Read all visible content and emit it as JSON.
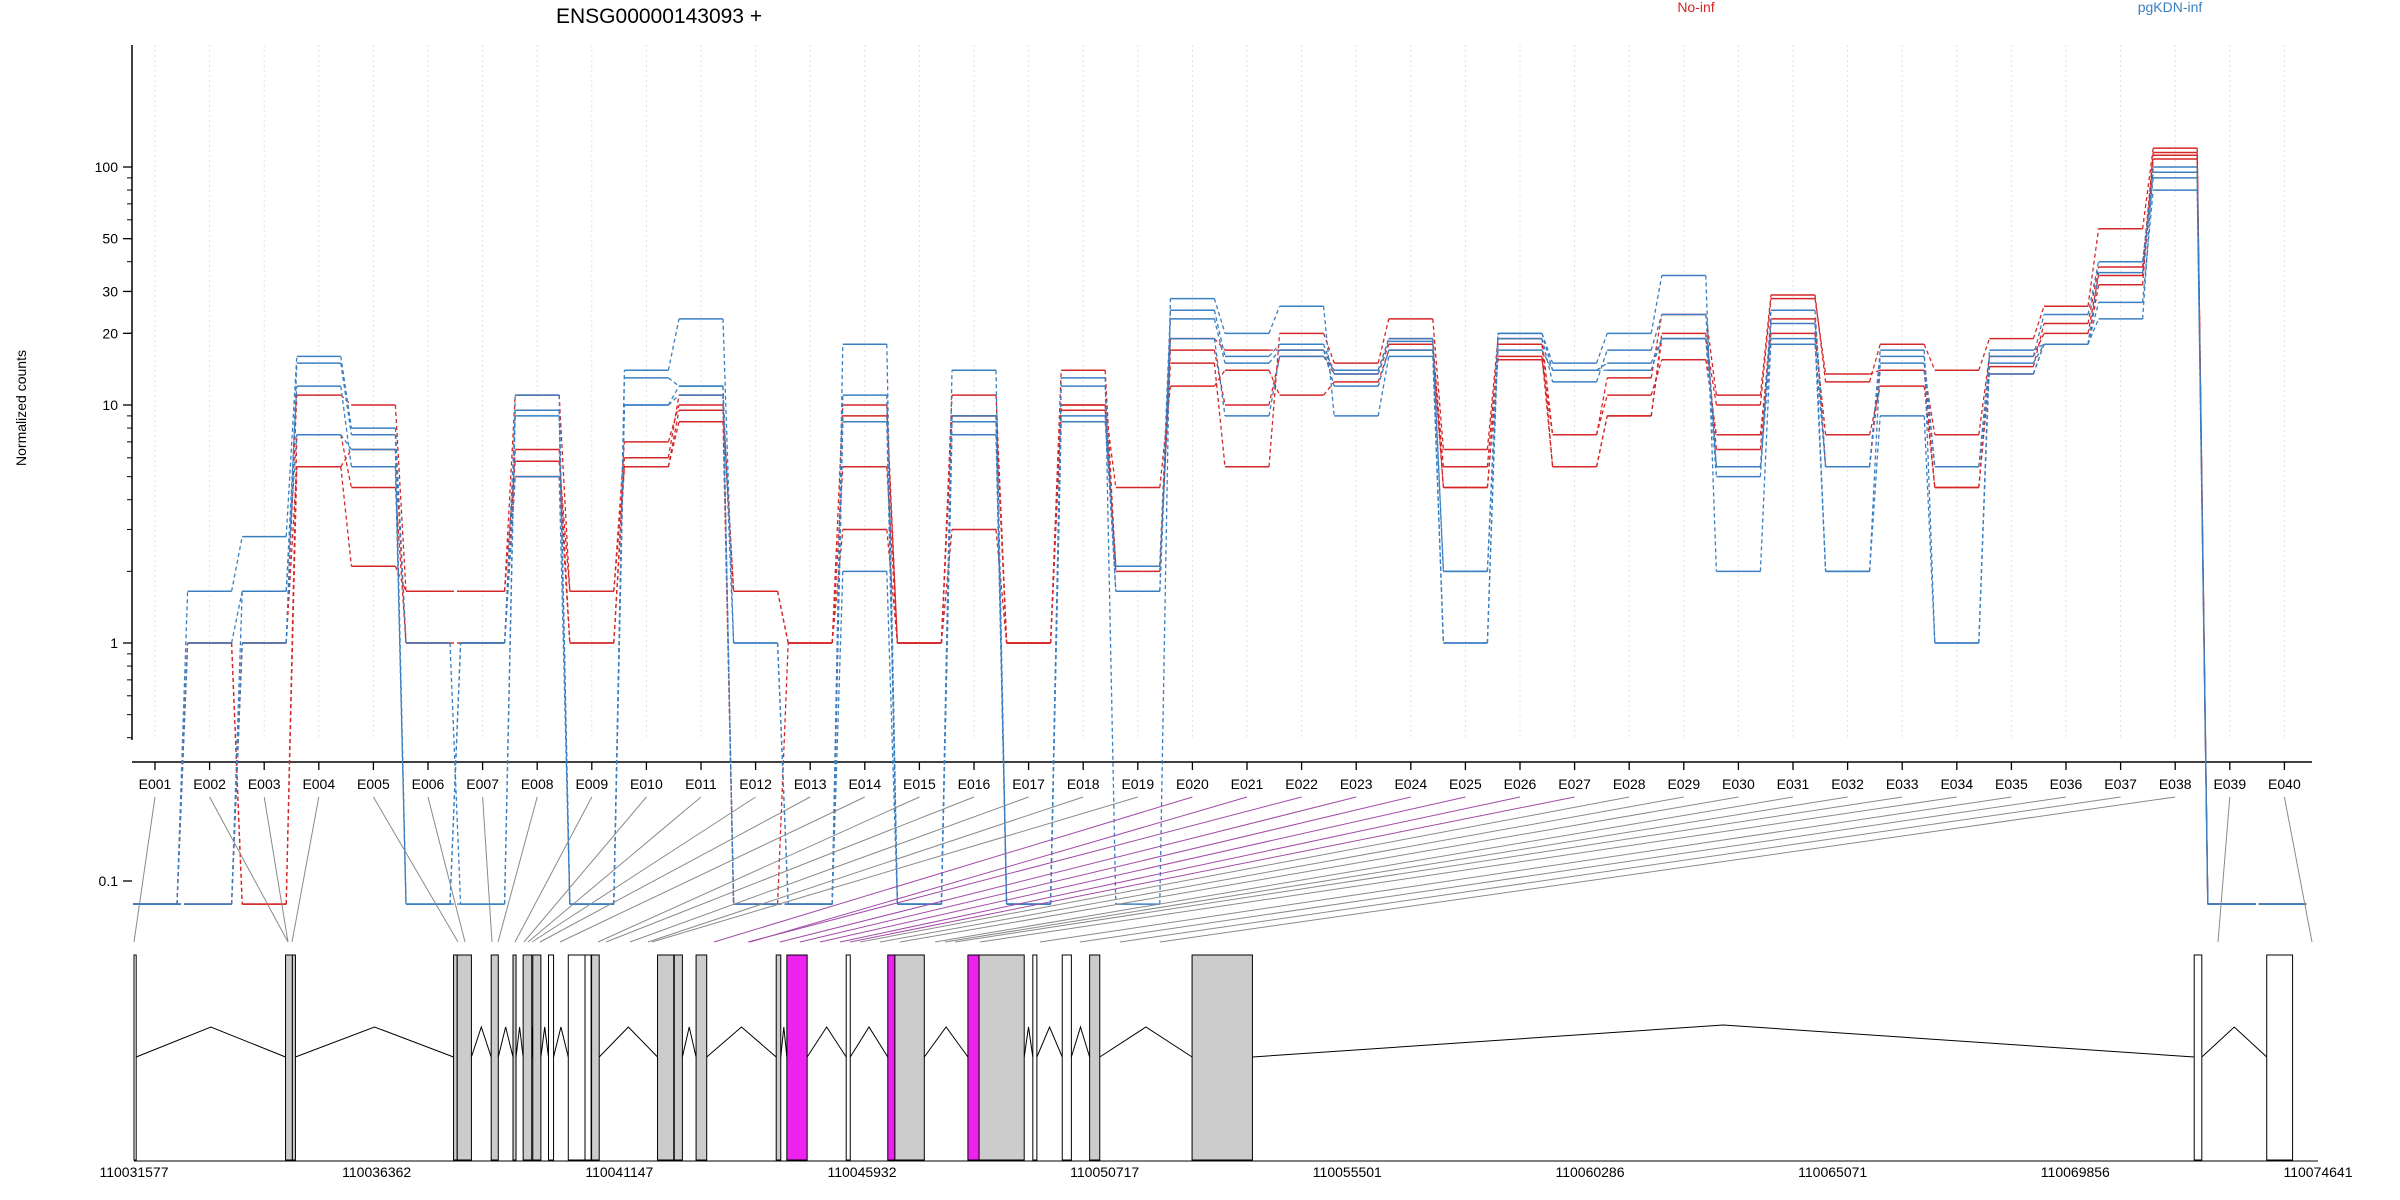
{
  "chart_data": {
    "type": "line",
    "title": "ENSG00000143093 +",
    "ylabel": "Normalized counts",
    "xlabel": "",
    "y_scale": "log",
    "y_ticks": [
      "0.1",
      "1",
      "10",
      "20",
      "30",
      "50",
      "100"
    ],
    "grid": false,
    "legend_placement": "top",
    "colors": {
      "No-inf": "#d62728",
      "pgKDN-inf": "#3a7fc1",
      "highlight_exon": "#ee22ee",
      "exon_fill": "#cccccc"
    },
    "categories": [
      "E001",
      "E002",
      "E003",
      "E004",
      "E005",
      "E006",
      "E007",
      "E008",
      "E009",
      "E010",
      "E011",
      "E012",
      "E013",
      "E014",
      "E015",
      "E016",
      "E017",
      "E018",
      "E019",
      "E020",
      "E021",
      "E022",
      "E023",
      "E024",
      "E025",
      "E026",
      "E027",
      "E028",
      "E029",
      "E030",
      "E031",
      "E032",
      "E033",
      "E034",
      "E035",
      "E036",
      "E037",
      "E038",
      "E039",
      "E040"
    ],
    "groups": [
      {
        "name": "No-inf"
      },
      {
        "name": "pgKDN-inf"
      }
    ],
    "series": [
      {
        "group": "No-inf",
        "values": [
          0.08,
          1.0,
          0.08,
          5.5,
          2.1,
          1.65,
          1.65,
          5.8,
          1.65,
          5.5,
          9.5,
          1.65,
          1.0,
          5.5,
          1.0,
          3.0,
          1.0,
          10.0,
          4.5,
          12.0,
          14.0,
          11.0,
          12.5,
          17.0,
          4.5,
          15.5,
          7.5,
          11.0,
          15.5,
          7.5,
          20.0,
          7.5,
          12.0,
          4.5,
          13.5,
          18.0,
          32.0,
          108.0,
          0.08,
          0.08
        ]
      },
      {
        "group": "No-inf",
        "values": [
          0.08,
          1.0,
          0.08,
          7.5,
          4.5,
          1.0,
          1.0,
          5.0,
          1.0,
          6.0,
          11.0,
          0.08,
          1.0,
          3.0,
          1.0,
          9.0,
          1.0,
          14.0,
          2.0,
          17.0,
          10.0,
          16.0,
          13.5,
          18.0,
          5.5,
          18.0,
          5.5,
          9.0,
          19.0,
          10.0,
          28.0,
          13.5,
          14.0,
          7.5,
          16.0,
          20.0,
          35.0,
          115.0,
          0.08,
          0.08
        ]
      },
      {
        "group": "No-inf",
        "values": [
          0.08,
          0.08,
          1.0,
          11.0,
          10.0,
          1.65,
          1.65,
          11.0,
          1.65,
          7.0,
          10.0,
          1.65,
          1.0,
          10.0,
          1.0,
          11.0,
          1.0,
          10.0,
          2.1,
          15.0,
          5.5,
          20.0,
          15.0,
          23.0,
          6.5,
          19.0,
          7.5,
          13.0,
          24.0,
          11.0,
          29.0,
          12.5,
          18.0,
          14.0,
          19.0,
          26.0,
          55.0,
          120.0,
          0.08,
          0.08
        ]
      },
      {
        "group": "No-inf",
        "values": [
          0.08,
          0.08,
          1.0,
          5.5,
          6.5,
          1.0,
          1.0,
          6.5,
          1.0,
          5.5,
          8.5,
          0.08,
          0.08,
          9.0,
          1.0,
          9.0,
          1.0,
          9.5,
          2.1,
          19.0,
          17.0,
          17.0,
          14.0,
          19.0,
          4.5,
          16.0,
          5.5,
          9.0,
          20.0,
          6.5,
          23.0,
          5.5,
          14.0,
          4.5,
          14.5,
          22.0,
          38.0,
          112.0,
          0.08,
          0.08
        ]
      },
      {
        "group": "pgKDN-inf",
        "values": [
          0.08,
          1.65,
          2.8,
          16.0,
          8.0,
          1.0,
          0.08,
          11.0,
          0.08,
          14.0,
          23.0,
          1.0,
          0.08,
          18.0,
          0.08,
          14.0,
          0.08,
          13.0,
          0.08,
          28.0,
          20.0,
          26.0,
          9.0,
          16.0,
          1.0,
          20.0,
          15.0,
          20.0,
          35.0,
          2.0,
          19.0,
          2.0,
          9.0,
          1.0,
          15.0,
          18.0,
          27.0,
          80.0,
          0.08,
          0.08
        ]
      },
      {
        "group": "pgKDN-inf",
        "values": [
          0.08,
          1.0,
          1.65,
          12.0,
          5.5,
          0.08,
          1.0,
          9.0,
          0.08,
          13.0,
          12.0,
          0.08,
          0.08,
          11.0,
          0.08,
          9.0,
          0.08,
          12.0,
          1.65,
          23.0,
          15.0,
          17.0,
          12.0,
          17.0,
          1.0,
          19.0,
          12.5,
          17.0,
          24.0,
          5.5,
          18.0,
          5.5,
          16.0,
          5.5,
          16.0,
          24.0,
          40.0,
          95.0,
          0.08,
          0.08
        ]
      },
      {
        "group": "pgKDN-inf",
        "values": [
          0.08,
          0.08,
          1.65,
          7.5,
          6.5,
          0.08,
          1.0,
          5.0,
          0.08,
          10.0,
          12.0,
          1.0,
          0.08,
          8.5,
          0.08,
          8.5,
          0.08,
          9.0,
          1.65,
          19.0,
          9.0,
          16.0,
          14.0,
          19.0,
          2.0,
          20.0,
          14.0,
          15.0,
          19.0,
          5.0,
          25.0,
          5.5,
          17.0,
          1.0,
          17.0,
          18.0,
          36.0,
          90.0,
          0.08,
          0.08
        ]
      },
      {
        "group": "pgKDN-inf",
        "values": [
          0.08,
          0.08,
          1.0,
          15.0,
          7.5,
          0.08,
          0.08,
          9.5,
          0.08,
          10.0,
          11.0,
          0.08,
          0.08,
          2.0,
          0.08,
          7.5,
          0.08,
          8.5,
          2.1,
          25.0,
          16.0,
          18.0,
          13.5,
          18.5,
          2.0,
          17.0,
          14.0,
          14.0,
          19.0,
          5.5,
          22.0,
          2.0,
          15.0,
          5.5,
          13.5,
          18.0,
          23.0,
          100.0,
          0.08,
          0.08
        ]
      }
    ],
    "genomic_axis": {
      "tick_labels": [
        "110031577",
        "110036362",
        "110041147",
        "110045932",
        "110050717",
        "110055501",
        "110060286",
        "110065071",
        "110069856",
        "110074641"
      ]
    }
  }
}
